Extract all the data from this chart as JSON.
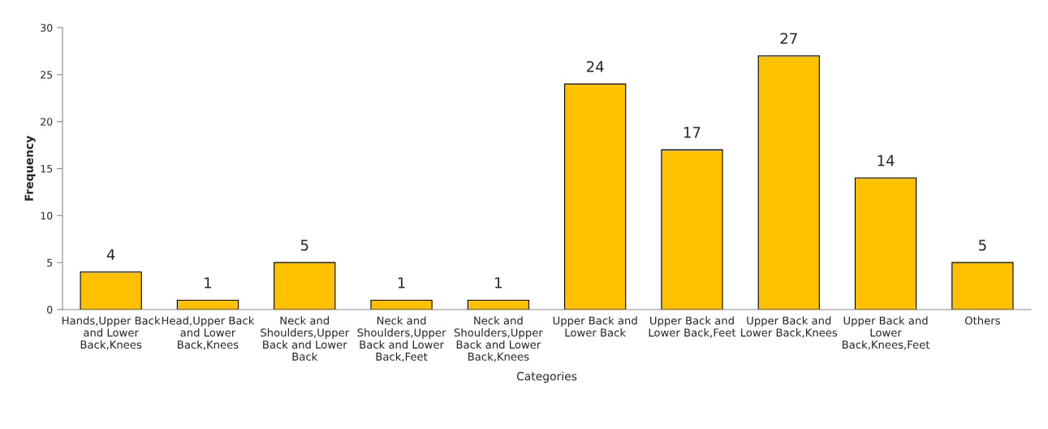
{
  "chart_data": {
    "type": "bar",
    "xlabel": "Categories",
    "ylabel": "Frequency",
    "categories": [
      "Hands,Upper Back\nand Lower\nBack,Knees",
      "Head,Upper Back\nand Lower\nBack,Knees",
      "Neck and\nShoulders,Upper\nBack and Lower\nBack",
      "Neck and\nShoulders,Upper\nBack and Lower\nBack,Feet",
      "Neck and\nShoulders,Upper\nBack and Lower\nBack,Knees",
      "Upper Back and\nLower Back",
      "Upper Back and\nLower Back,Feet",
      "Upper Back and\nLower Back,Knees",
      "Upper Back and\nLower\nBack,Knees,Feet",
      "Others"
    ],
    "values": [
      4,
      1,
      5,
      1,
      1,
      24,
      17,
      27,
      14,
      5
    ],
    "color": "#ffc000",
    "data_labels": true,
    "grid": false,
    "ylim": [
      0,
      30
    ],
    "yticks": [
      0,
      5,
      10,
      15,
      20,
      25,
      30
    ]
  }
}
